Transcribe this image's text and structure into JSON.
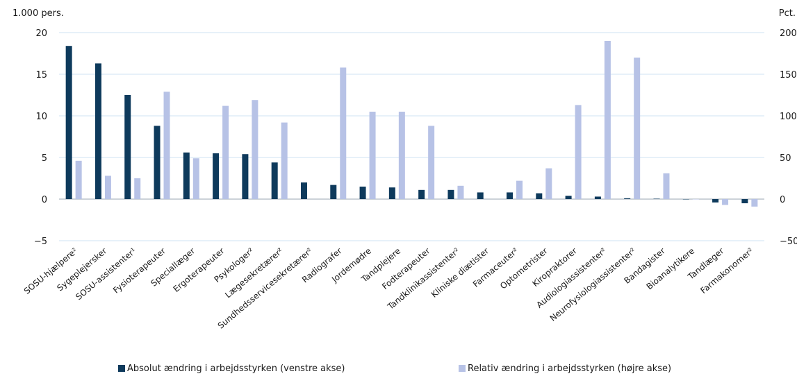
{
  "colors": {
    "absolute": "#0e3a5c",
    "relative": "#b7c2e6",
    "grid": "#cfe3f3",
    "text": "#1a1a1a"
  },
  "chart_data": {
    "type": "bar",
    "left_axis_unit": "1.000 pers.",
    "right_axis_unit": "Pct.",
    "ylim_left": [
      -5,
      20
    ],
    "ylim_right": [
      -50,
      200
    ],
    "yticks_left": [
      "−5",
      "0",
      "5",
      "10",
      "15",
      "20"
    ],
    "yticks_left_values": [
      -5,
      0,
      5,
      10,
      15,
      20
    ],
    "yticks_right": [
      "−50",
      "0",
      "50",
      "100",
      "150",
      "200"
    ],
    "yticks_right_values": [
      -50,
      0,
      50,
      100,
      150,
      200
    ],
    "grid": true,
    "legend_position": "bottom",
    "categories": [
      "SOSU-hjælpere²",
      "Sygeplejersker",
      "SOSU-assistenter¹",
      "Fysioterapeuter",
      "Speciallæger",
      "Ergoterapeuter",
      "Psykologer²",
      "Lægesekretærer²",
      "Sundhedsservicesekretærer²",
      "Radiografer",
      "Jordemødre",
      "Tandplejere",
      "Fodterapeuter",
      "Tandklinikassistenter²",
      "Kliniske diætister",
      "Farmaceuter²",
      "Optometrister",
      "Kiropraktorer",
      "Audiologiassistenter²",
      "Neurofysiologiassistenter²",
      "Bandagister",
      "Bioanalytikere",
      "Tandlæger",
      "Farmakonomer²"
    ],
    "series": [
      {
        "name": "Absolut ændring i arbejdsstyrken (venstre akse)",
        "axis": "left",
        "values": [
          18.4,
          16.3,
          12.5,
          8.8,
          5.6,
          5.5,
          5.4,
          4.4,
          2.0,
          1.7,
          1.5,
          1.4,
          1.1,
          1.1,
          0.8,
          0.8,
          0.7,
          0.4,
          0.3,
          0.1,
          0.05,
          0.0,
          -0.4,
          -0.5
        ]
      },
      {
        "name": "Relativ ændring i arbejdsstyrken (højre akse)",
        "axis": "right",
        "values": [
          46,
          28,
          25,
          129,
          49,
          112,
          119,
          92,
          null,
          158,
          105,
          105,
          88,
          16,
          null,
          22,
          37,
          113,
          190,
          170,
          31,
          0,
          -7,
          -9
        ]
      }
    ]
  }
}
